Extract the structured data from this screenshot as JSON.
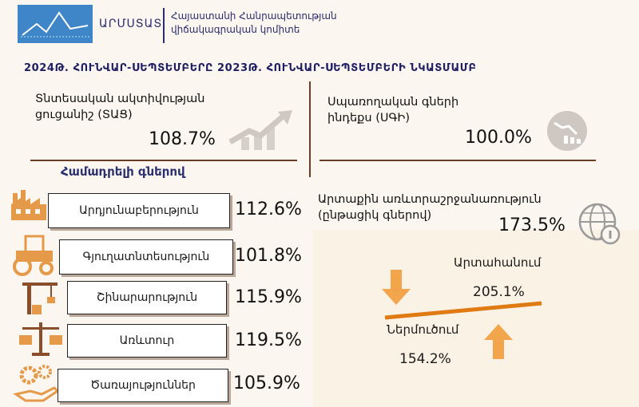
{
  "header": {
    "logo_text": "ԱՐՄՍՏԱՏ",
    "org_name_line1": "Հայաստանի Հանրապետության",
    "org_name_line2": "վիճակագրական կոմիտե"
  },
  "title": "2024Թ. ՀՈՒՆՎԱՐ-ՍԵՊՏԵՄԲԵՐԸ 2023Թ. ՀՈՒՆՎԱՐ-ՍԵՊՏԵՄԲԵՐԻ ՆԿԱՏՄԱՄԲ",
  "activity": {
    "label_line1": "Տնտեսական ակտիվության",
    "label_line2": "ցուցանիշ (ՏԱՑ)",
    "value": "108.7%"
  },
  "cpi": {
    "label_line1": "Սպառողական գների",
    "label_line2": "ինդեքս (ՍԳԻ)",
    "value": "100.0%"
  },
  "comparable_title": "Համադրելի գներով",
  "sectors": [
    {
      "label": "Արդյունաբերություն",
      "value": "112.6%",
      "icon": "factory-icon"
    },
    {
      "label": "Գյուղատնտեսություն",
      "value": "101.8%",
      "icon": "tractor-icon"
    },
    {
      "label": "Շինարարություն",
      "value": "115.9%",
      "icon": "crane-icon"
    },
    {
      "label": "Առևտուր",
      "value": "119.5%",
      "icon": "scales-icon"
    },
    {
      "label": "Ծառայություններ",
      "value": "105.9%",
      "icon": "gears-hand-icon"
    }
  ],
  "external_trade": {
    "label_line1": "Արտաքին առևտրաշրջանառություն",
    "label_line2": "(ընթացիկ գներով)",
    "value": "173.5%",
    "export_label": "Արտահանում",
    "export_value": "205.1%",
    "import_label": "Ներմուծում",
    "import_value": "154.2%"
  },
  "colors": {
    "title_blue": "#1e1e64",
    "brown": "#6b3b22",
    "orange": "#e07b14",
    "arrow_orange": "#f2a54a",
    "logo_blue": "#3f86c9"
  }
}
